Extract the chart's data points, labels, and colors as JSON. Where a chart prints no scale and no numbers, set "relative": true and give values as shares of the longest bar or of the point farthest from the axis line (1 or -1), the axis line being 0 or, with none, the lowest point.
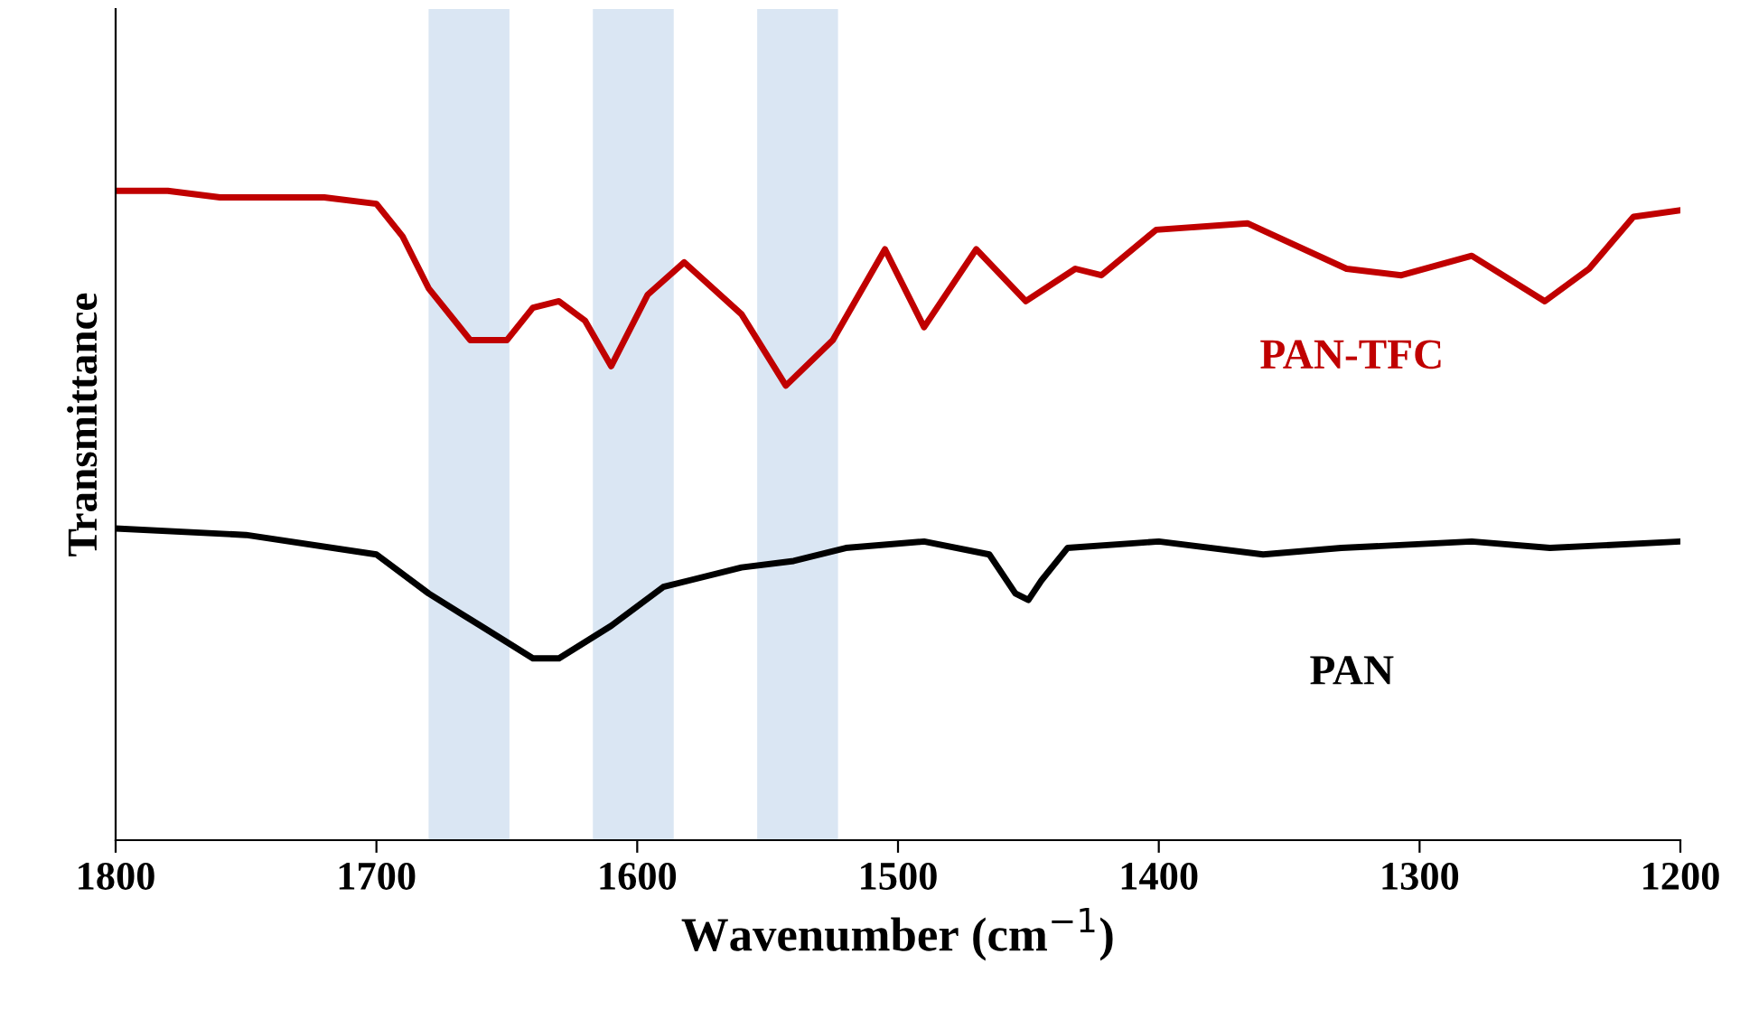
{
  "chart_data": {
    "type": "line",
    "relative": true,
    "xlabel": "Wavenumber (cm$^{−1}$)",
    "ylabel": "Transmittance",
    "xlim": [
      1800,
      1200
    ],
    "xticks": [
      1800,
      1700,
      1600,
      1500,
      1400,
      1300,
      1200
    ],
    "grid": false,
    "legend": false,
    "marker": "none",
    "line_style": "solid",
    "series": [
      {
        "name": "PAN-TFC",
        "color": "#c00000",
        "x": [
          1800,
          1780,
          1760,
          1740,
          1720,
          1700,
          1690,
          1680,
          1664,
          1650,
          1640,
          1630,
          1620,
          1610,
          1596,
          1582,
          1560,
          1543,
          1525,
          1505,
          1490,
          1470,
          1451,
          1432,
          1422,
          1401,
          1366,
          1328,
          1307,
          1280,
          1252,
          1235,
          1218,
          1200
        ],
        "values": [
          1.0,
          1.0,
          0.99,
          0.99,
          0.99,
          0.98,
          0.93,
          0.85,
          0.77,
          0.77,
          0.82,
          0.83,
          0.8,
          0.73,
          0.84,
          0.89,
          0.81,
          0.7,
          0.77,
          0.91,
          0.79,
          0.91,
          0.83,
          0.88,
          0.87,
          0.94,
          0.95,
          0.88,
          0.87,
          0.9,
          0.83,
          0.88,
          0.96,
          0.97
        ]
      },
      {
        "name": "PAN",
        "color": "#000000",
        "x": [
          1800,
          1750,
          1700,
          1680,
          1660,
          1640,
          1630,
          1610,
          1590,
          1560,
          1540,
          1520,
          1490,
          1465,
          1455,
          1450,
          1445,
          1435,
          1400,
          1360,
          1330,
          1280,
          1250,
          1200
        ],
        "values": [
          0.48,
          0.47,
          0.44,
          0.38,
          0.33,
          0.28,
          0.28,
          0.33,
          0.39,
          0.42,
          0.43,
          0.45,
          0.46,
          0.44,
          0.38,
          0.37,
          0.4,
          0.45,
          0.46,
          0.44,
          0.45,
          0.46,
          0.45,
          0.46
        ]
      }
    ],
    "bands": [
      {
        "axis": "x",
        "from": 1680,
        "to": 1649,
        "color": "#dae6f3"
      },
      {
        "axis": "x",
        "from": 1617,
        "to": 1586,
        "color": "#dae6f3"
      },
      {
        "axis": "x",
        "from": 1554,
        "to": 1523,
        "color": "#dae6f3"
      }
    ]
  }
}
